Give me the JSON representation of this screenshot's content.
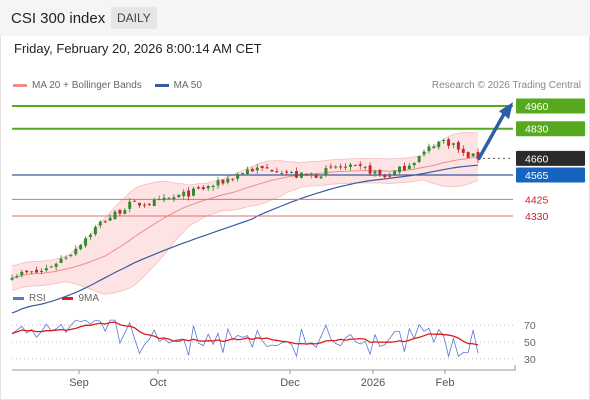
{
  "header": {
    "title": "CSI 300 index",
    "period": "DAILY"
  },
  "datetime": "Friday, February 20, 2026 8:00:14 AM CET",
  "credit": "Research © 2026 Trading Central",
  "legend_price": [
    {
      "label": "MA 20 + Bollinger Bands",
      "color": "#f08c8c"
    },
    {
      "label": "MA 50",
      "color": "#3c5aa0"
    }
  ],
  "legend_rsi": [
    {
      "label": "RSI",
      "color": "#5a78d2"
    },
    {
      "label": "9MA",
      "color": "#dd1c1c"
    }
  ],
  "colors": {
    "up": "#2e8b2e",
    "down": "#c62828",
    "resistance": "#56a81e",
    "support": "#e06f6f",
    "ma50": "#3c5aa0",
    "ma20": "#f08c8c",
    "band": "#fde3e3",
    "arrow": "#2c5ea8",
    "current": "#2b2b2b",
    "ma50_tag": "#1565c0"
  },
  "chart_data": [
    {
      "type": "candlestick",
      "title": "CSI 300 index",
      "x_tick_labels": [
        "Sep",
        "Oct",
        "Dec",
        "2026",
        "Feb"
      ],
      "levels": [
        {
          "value": 4960,
          "label": "4960",
          "kind": "resistance"
        },
        {
          "value": 4830,
          "label": "4830",
          "kind": "resistance"
        },
        {
          "value": 4660,
          "label": "4660",
          "kind": "current"
        },
        {
          "value": 4565,
          "label": "4565",
          "kind": "ma50"
        },
        {
          "value": 4425,
          "label": "4425",
          "kind": "support"
        },
        {
          "value": 4330,
          "label": "4330",
          "kind": "support"
        }
      ],
      "ylim": [
        3950,
        5020
      ],
      "series": [
        {
          "name": "MA 20 + Bollinger Bands"
        },
        {
          "name": "MA 50"
        }
      ]
    },
    {
      "type": "line",
      "title": "",
      "y_ticks": [
        "70",
        "50",
        "30"
      ],
      "ylim": [
        20,
        80
      ],
      "series": [
        {
          "name": "RSI"
        },
        {
          "name": "9MA"
        }
      ]
    }
  ]
}
